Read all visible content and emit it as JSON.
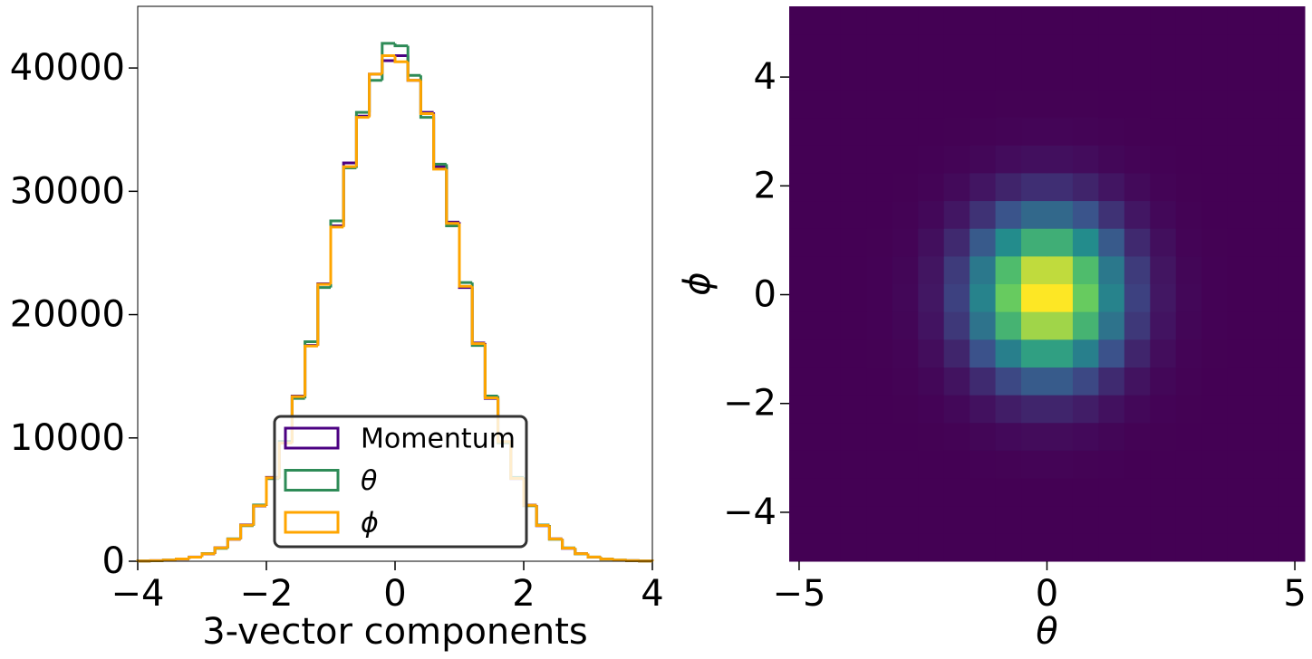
{
  "chart_data": [
    {
      "type": "histogram",
      "bins": [
        -4,
        -3.8,
        -3.6,
        -3.4,
        -3.2,
        -3,
        -2.8,
        -2.6,
        -2.4,
        -2.2,
        -2,
        -1.8,
        -1.6,
        -1.4,
        -1.2,
        -1,
        -0.8,
        -0.6,
        -0.4,
        -0.2,
        0,
        0.2,
        0.4,
        0.6,
        0.8,
        1,
        1.2,
        1.4,
        1.6,
        1.8,
        2,
        2.2,
        2.4,
        2.6,
        2.8,
        3,
        3.2,
        3.4,
        3.6,
        3.8,
        4
      ],
      "series": [
        {
          "name": "Momentum",
          "color": "#4b0082",
          "values": [
            18,
            47,
            95,
            170,
            340,
            600,
            1090,
            1780,
            2950,
            4480,
            6800,
            9600,
            13400,
            17500,
            22500,
            27200,
            32300,
            36100,
            39500,
            40600,
            41000,
            39000,
            36400,
            32000,
            27500,
            22200,
            17700,
            13200,
            9700,
            6700,
            4550,
            2880,
            1820,
            1050,
            620,
            330,
            180,
            85,
            46,
            22
          ]
        },
        {
          "name": "θ",
          "color": "#2e8b57",
          "values": [
            22,
            40,
            92,
            185,
            330,
            625,
            1050,
            1820,
            2880,
            4560,
            6700,
            9720,
            13200,
            17800,
            22200,
            27600,
            31900,
            36400,
            39000,
            42000,
            41800,
            39400,
            36000,
            32200,
            27200,
            22600,
            17500,
            13400,
            9600,
            6800,
            4500,
            2940,
            1780,
            1080,
            600,
            340,
            172,
            94,
            42,
            18
          ]
        },
        {
          "name": "ϕ",
          "color": "#ffa500",
          "values": [
            19,
            45,
            88,
            180,
            328,
            610,
            1080,
            1790,
            2920,
            4500,
            6760,
            9580,
            13350,
            17450,
            22450,
            27100,
            32000,
            36000,
            39500,
            41000,
            40500,
            39000,
            36300,
            31800,
            27400,
            22300,
            17650,
            13250,
            9700,
            6720,
            4530,
            2900,
            1810,
            1060,
            615,
            338,
            175,
            88,
            45,
            21
          ]
        }
      ],
      "xlim": [
        -4,
        4
      ],
      "ylim": [
        0,
        45000
      ],
      "xticks": [
        {
          "value": -4,
          "label": "−4"
        },
        {
          "value": -2,
          "label": "−2"
        },
        0,
        2,
        4
      ],
      "yticks": [
        0,
        10000,
        20000,
        30000,
        40000
      ],
      "xlabel": "3-vector components",
      "legend": "lower center"
    },
    {
      "type": "heatmap",
      "xbins": [
        -5.2,
        -4.68,
        -4.16,
        -3.64,
        -3.12,
        -2.6,
        -2.08,
        -1.56,
        -1.04,
        -0.52,
        0,
        0.52,
        1.04,
        1.56,
        2.08,
        2.6,
        3.12,
        3.64,
        4.16,
        4.68,
        5.2
      ],
      "ybins": [
        -4.9,
        -4.39,
        -3.88,
        -3.37,
        -2.86,
        -2.35,
        -1.84,
        -1.33,
        -0.82,
        -0.31,
        0.2,
        0.71,
        1.22,
        1.73,
        2.24,
        2.75,
        3.26,
        3.77,
        4.28,
        4.79,
        5.3
      ],
      "counts": [
        [
          0,
          0,
          0,
          0,
          0,
          0,
          0,
          0,
          0,
          0,
          0,
          0,
          0,
          0,
          0,
          0,
          0,
          0,
          0,
          0
        ],
        [
          0,
          0,
          0,
          0,
          0,
          0,
          0,
          0,
          0,
          0,
          0,
          0,
          0,
          0,
          0,
          0,
          0,
          0,
          0,
          0
        ],
        [
          0,
          0,
          0,
          0,
          0,
          0,
          0,
          1,
          1,
          1,
          1,
          1,
          1,
          0,
          0,
          0,
          0,
          0,
          0,
          0
        ],
        [
          0,
          0,
          0,
          0,
          0,
          1,
          1,
          3,
          6,
          8,
          8,
          6,
          3,
          1,
          1,
          0,
          0,
          0,
          0,
          0
        ],
        [
          0,
          0,
          0,
          0,
          1,
          2,
          6,
          14,
          25,
          32,
          32,
          25,
          14,
          6,
          2,
          1,
          0,
          0,
          0,
          0
        ],
        [
          0,
          0,
          0,
          0,
          2,
          7,
          21,
          48,
          82,
          107,
          107,
          82,
          48,
          21,
          7,
          2,
          0,
          0,
          0,
          0
        ],
        [
          0,
          0,
          0,
          1,
          5,
          19,
          54,
          123,
          210,
          276,
          276,
          210,
          123,
          54,
          19,
          5,
          1,
          0,
          0,
          0
        ],
        [
          0,
          0,
          0,
          2,
          9,
          36,
          107,
          241,
          414,
          542,
          542,
          414,
          241,
          107,
          36,
          9,
          2,
          0,
          0,
          0
        ],
        [
          0,
          0,
          0,
          3,
          14,
          55,
          163,
          366,
          629,
          824,
          824,
          629,
          366,
          163,
          55,
          14,
          3,
          0,
          0,
          0
        ],
        [
          0,
          0,
          0,
          3,
          17,
          65,
          191,
          429,
          737,
          965,
          965,
          737,
          429,
          191,
          65,
          17,
          3,
          0,
          0,
          0
        ],
        [
          0,
          0,
          0,
          3,
          15,
          59,
          172,
          388,
          666,
          872,
          872,
          666,
          388,
          172,
          59,
          15,
          3,
          0,
          0,
          0
        ],
        [
          0,
          0,
          0,
          2,
          10,
          41,
          120,
          270,
          463,
          607,
          607,
          463,
          270,
          120,
          41,
          10,
          2,
          0,
          0,
          0
        ],
        [
          0,
          0,
          0,
          1,
          6,
          22,
          64,
          145,
          249,
          326,
          326,
          249,
          145,
          64,
          22,
          6,
          1,
          0,
          0,
          0
        ],
        [
          0,
          0,
          0,
          0,
          2,
          9,
          27,
          60,
          103,
          134,
          134,
          103,
          60,
          27,
          9,
          2,
          0,
          0,
          0,
          0
        ],
        [
          0,
          0,
          0,
          0,
          1,
          3,
          8,
          19,
          33,
          43,
          43,
          33,
          19,
          8,
          3,
          1,
          0,
          0,
          0,
          0
        ],
        [
          0,
          0,
          0,
          0,
          0,
          1,
          2,
          5,
          8,
          11,
          11,
          8,
          5,
          2,
          1,
          0,
          0,
          0,
          0,
          0
        ],
        [
          0,
          0,
          0,
          0,
          0,
          0,
          0,
          1,
          2,
          2,
          2,
          2,
          1,
          0,
          0,
          0,
          0,
          0,
          0,
          0
        ],
        [
          0,
          0,
          0,
          0,
          0,
          0,
          0,
          0,
          0,
          0,
          0,
          0,
          0,
          0,
          0,
          0,
          0,
          0,
          0,
          0
        ],
        [
          0,
          0,
          0,
          0,
          0,
          0,
          0,
          0,
          0,
          0,
          0,
          0,
          0,
          0,
          0,
          0,
          0,
          0,
          0,
          0
        ],
        [
          0,
          0,
          0,
          0,
          0,
          0,
          0,
          0,
          0,
          0,
          0,
          0,
          0,
          0,
          0,
          0,
          0,
          0,
          0,
          0
        ]
      ],
      "xlim": [
        -5.2,
        5.2
      ],
      "ylim": [
        -4.9,
        5.3
      ],
      "xticks": [
        {
          "value": -5,
          "label": "−5"
        },
        0,
        5
      ],
      "yticks": [
        {
          "value": -4,
          "label": "−4"
        },
        {
          "value": -2,
          "label": "−2"
        },
        0,
        2,
        4
      ],
      "xlabel": "θ",
      "ylabel": "ϕ",
      "colormap": "viridis"
    }
  ]
}
